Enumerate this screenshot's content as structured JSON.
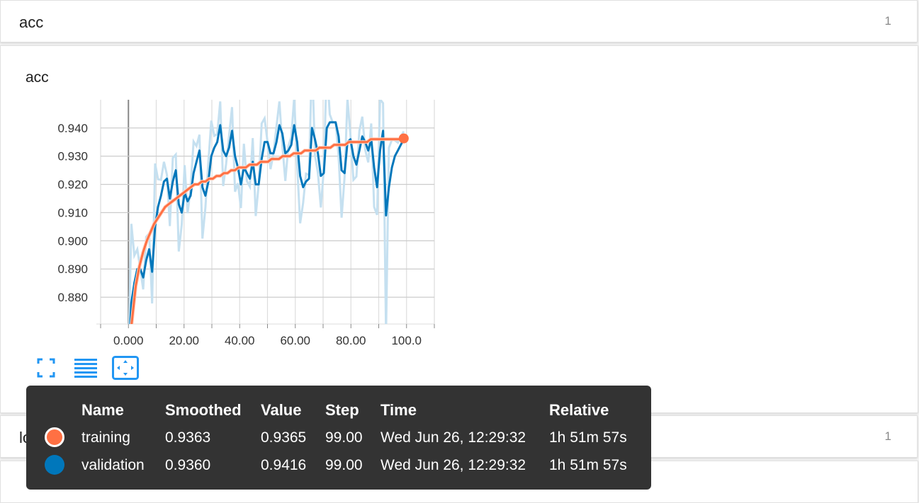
{
  "categories": [
    {
      "title": "acc",
      "count": "1"
    },
    {
      "title": "loss",
      "count": "1"
    }
  ],
  "card": {
    "title": "acc"
  },
  "chart_data": {
    "type": "line",
    "x_ticks": [
      "0.000",
      "20.00",
      "40.00",
      "60.00",
      "80.00",
      "100.0"
    ],
    "y_ticks": [
      "0.940",
      "0.930",
      "0.920",
      "0.910",
      "0.900",
      "0.890",
      "0.880"
    ],
    "xlim": [
      -10,
      110
    ],
    "ylim": [
      0.8705,
      0.95
    ],
    "series": [
      {
        "name": "training",
        "color": "#ff7043",
        "smoothed": [
          0.86,
          0.872,
          0.884,
          0.891,
          0.896,
          0.9,
          0.903,
          0.906,
          0.908,
          0.91,
          0.912,
          0.913,
          0.914,
          0.915,
          0.916,
          0.917,
          0.918,
          0.919,
          0.92,
          0.92,
          0.921,
          0.921,
          0.922,
          0.922,
          0.923,
          0.923,
          0.924,
          0.924,
          0.925,
          0.925,
          0.926,
          0.926,
          0.926,
          0.927,
          0.927,
          0.927,
          0.928,
          0.928,
          0.928,
          0.929,
          0.929,
          0.929,
          0.93,
          0.93,
          0.93,
          0.931,
          0.931,
          0.931,
          0.932,
          0.932,
          0.932,
          0.932,
          0.933,
          0.933,
          0.933,
          0.933,
          0.934,
          0.934,
          0.934,
          0.934,
          0.935,
          0.935,
          0.935,
          0.935,
          0.935,
          0.935,
          0.936,
          0.936,
          0.936,
          0.936,
          0.936,
          0.936,
          0.936,
          0.936,
          0.936,
          0.9363
        ]
      },
      {
        "name": "validation",
        "color": "#0077bb",
        "smoothed": [
          0.858,
          0.878,
          0.885,
          0.89,
          0.89,
          0.887,
          0.893,
          0.897,
          0.889,
          0.905,
          0.912,
          0.916,
          0.921,
          0.922,
          0.915,
          0.921,
          0.925,
          0.913,
          0.91,
          0.917,
          0.914,
          0.916,
          0.924,
          0.928,
          0.932,
          0.919,
          0.916,
          0.921,
          0.93,
          0.933,
          0.935,
          0.941,
          0.932,
          0.93,
          0.933,
          0.939,
          0.93,
          0.926,
          0.92,
          0.926,
          0.924,
          0.922,
          0.928,
          0.92,
          0.92,
          0.929,
          0.935,
          0.935,
          0.931,
          0.931,
          0.935,
          0.941,
          0.938,
          0.931,
          0.932,
          0.934,
          0.941,
          0.935,
          0.923,
          0.919,
          0.921,
          0.922,
          0.94,
          0.936,
          0.931,
          0.923,
          0.924,
          0.94,
          0.942,
          0.942,
          0.942,
          0.937,
          0.925,
          0.924,
          0.935,
          0.936,
          0.93,
          0.927,
          0.932,
          0.937,
          0.935,
          0.932,
          0.936,
          0.926,
          0.919,
          0.932,
          0.939,
          0.909,
          0.919,
          0.926,
          0.93,
          0.932,
          0.934,
          0.936
        ],
        "raw_color": "#c5e0f0"
      }
    ]
  },
  "toolbar": {
    "expand_icon": "fullscreen-icon",
    "list_icon": "list-icon",
    "fit_icon": "fit-domain-icon"
  },
  "tooltip": {
    "headers": [
      "Name",
      "Smoothed",
      "Value",
      "Step",
      "Time",
      "Relative"
    ],
    "rows": [
      {
        "name": "training",
        "smoothed": "0.9363",
        "value": "0.9365",
        "step": "99.00",
        "time": "Wed Jun 26, 12:29:32",
        "relative": "1h 51m 57s",
        "color": "#ff7043"
      },
      {
        "name": "validation",
        "smoothed": "0.9360",
        "value": "0.9416",
        "step": "99.00",
        "time": "Wed Jun 26, 12:29:32",
        "relative": "1h 51m 57s",
        "color": "#0077bb"
      }
    ]
  }
}
